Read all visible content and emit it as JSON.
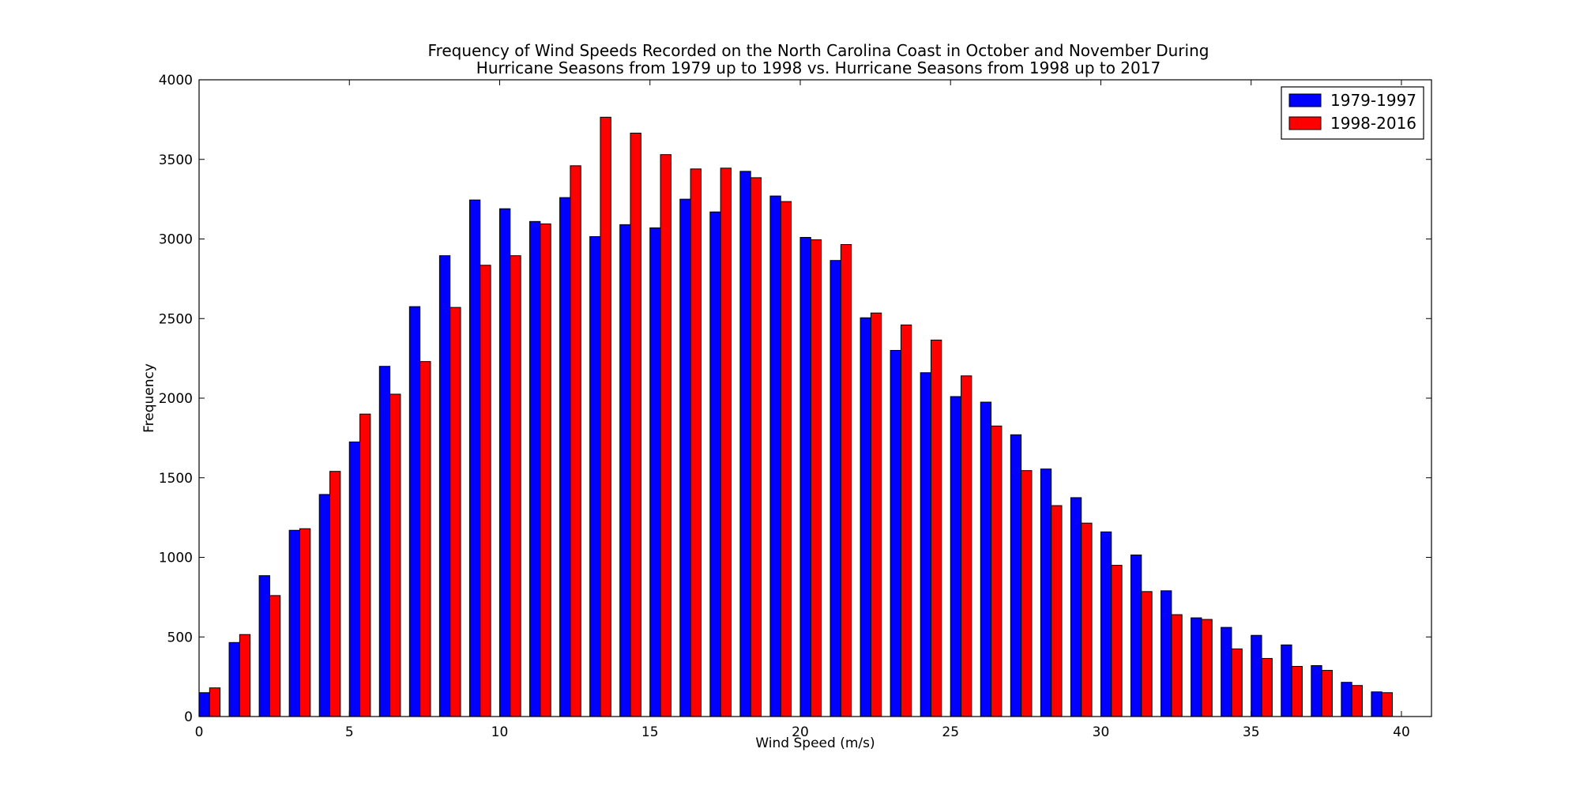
{
  "chart_data": {
    "type": "bar",
    "title_lines": [
      "Frequency of Wind Speeds Recorded on the North Carolina Coast in October and November During",
      "Hurricane Seasons from 1979 up to 1998 vs. Hurricane Seasons from 1998 up to 2017"
    ],
    "xlabel": "Wind Speed (m/s)",
    "ylabel": "Frequency",
    "xlim": [
      0,
      41
    ],
    "ylim": [
      0,
      4000
    ],
    "x_ticks": [
      0,
      5,
      10,
      15,
      20,
      25,
      30,
      35,
      40
    ],
    "y_ticks": [
      0,
      500,
      1000,
      1500,
      2000,
      2500,
      3000,
      3500,
      4000
    ],
    "bar_width": 0.35,
    "x": [
      0,
      1,
      2,
      3,
      4,
      5,
      6,
      7,
      8,
      9,
      10,
      11,
      12,
      13,
      14,
      15,
      16,
      17,
      18,
      19,
      20,
      21,
      22,
      23,
      24,
      25,
      26,
      27,
      28,
      29,
      30,
      31,
      32,
      33,
      34,
      35,
      36,
      37,
      38,
      39
    ],
    "series": [
      {
        "name": "1979-1997",
        "color": "#0000ff",
        "values": [
          150,
          465,
          885,
          1170,
          1395,
          1725,
          2200,
          2575,
          2895,
          3245,
          3190,
          3110,
          3260,
          3015,
          3090,
          3070,
          3250,
          3170,
          3425,
          3270,
          3010,
          2865,
          2505,
          2300,
          2160,
          2010,
          1975,
          1770,
          1555,
          1375,
          1160,
          1015,
          790,
          620,
          560,
          510,
          450,
          320,
          215,
          155
        ]
      },
      {
        "name": "1998-2016",
        "color": "#ff0000",
        "values": [
          180,
          515,
          760,
          1180,
          1540,
          1900,
          2025,
          2230,
          2570,
          2835,
          2895,
          3095,
          3460,
          3765,
          3665,
          3530,
          3440,
          3445,
          3385,
          3235,
          2995,
          2965,
          2535,
          2460,
          2365,
          2140,
          1825,
          1545,
          1325,
          1215,
          950,
          785,
          640,
          610,
          425,
          365,
          315,
          290,
          195,
          150
        ]
      }
    ],
    "legend_position": "top-right",
    "grid": false
  }
}
